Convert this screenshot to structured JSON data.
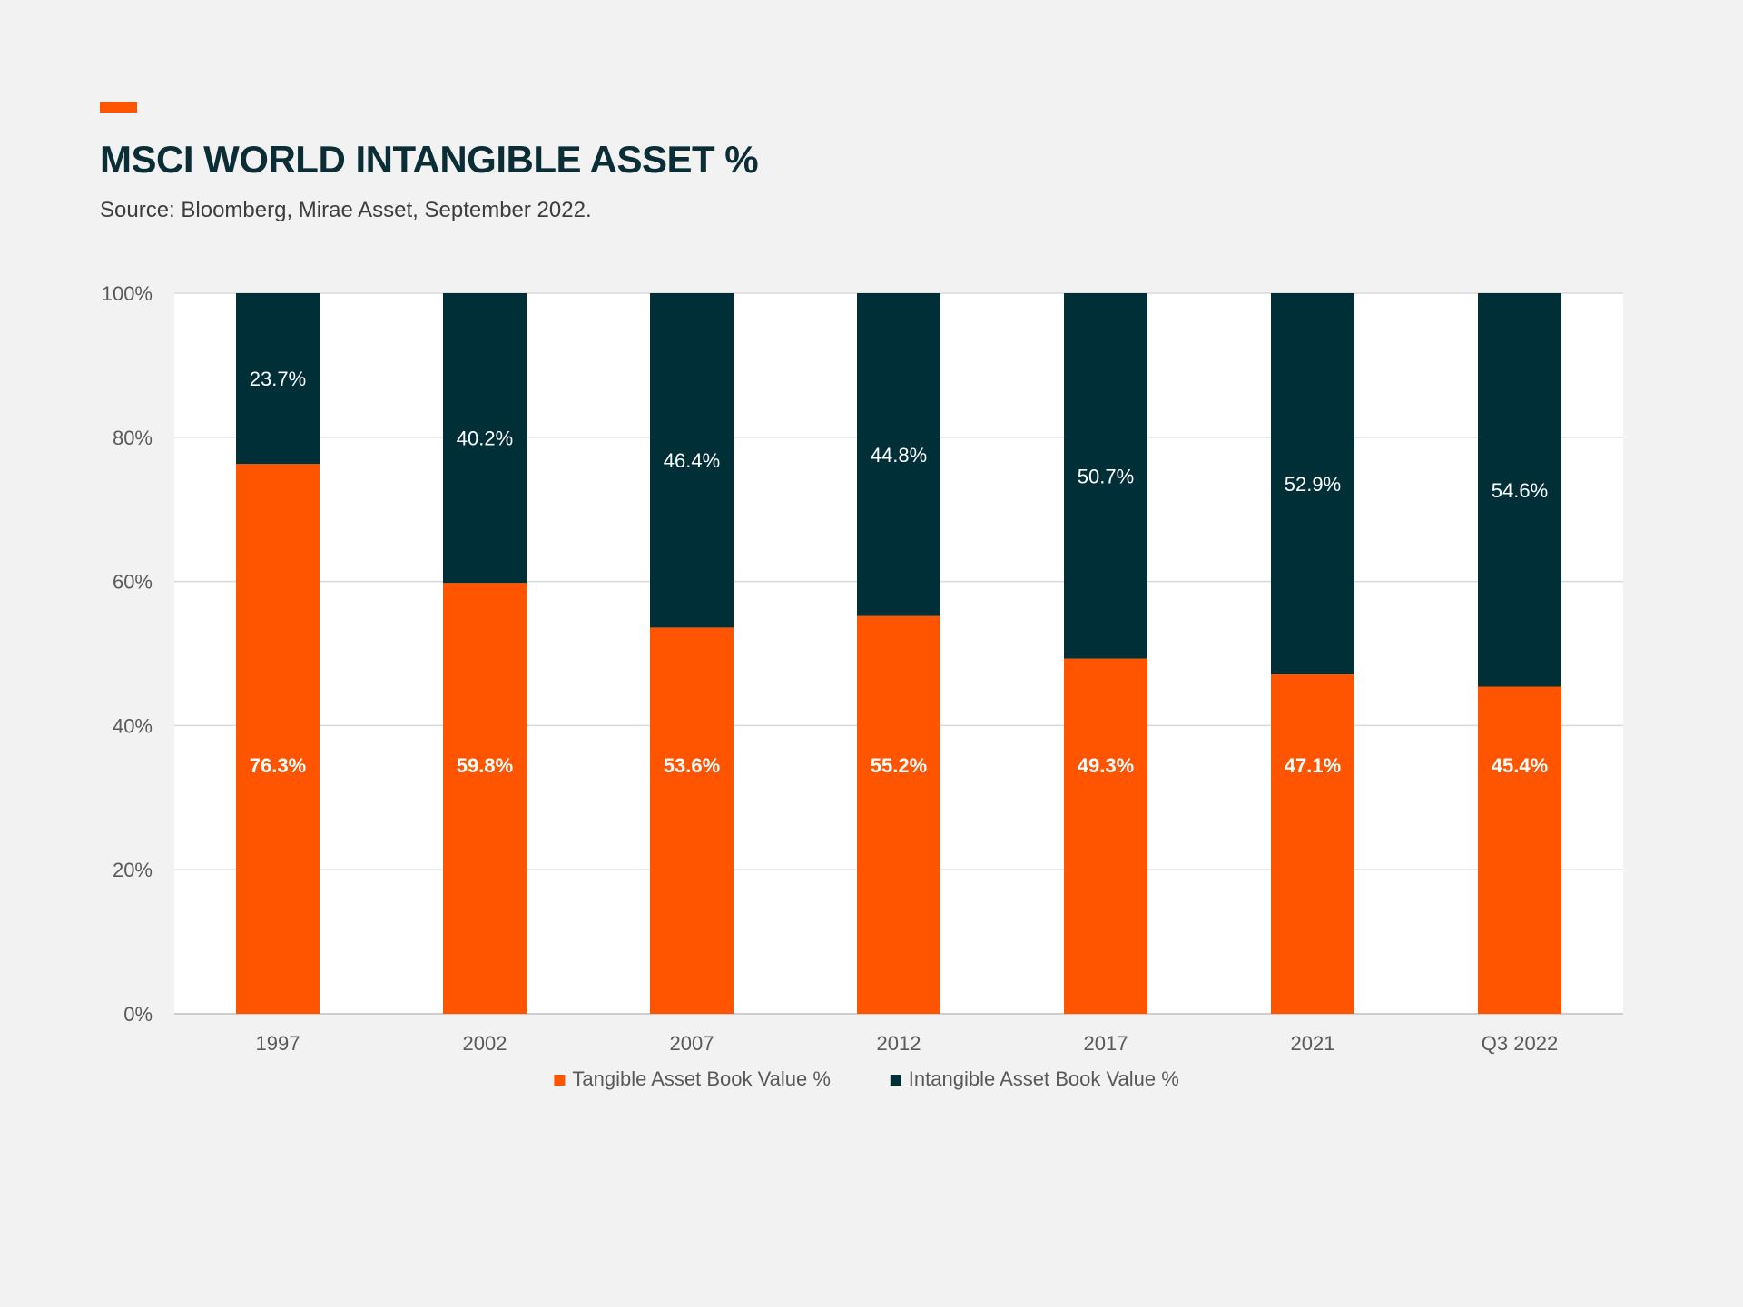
{
  "header": {
    "title": "MSCI WORLD INTANGIBLE ASSET %",
    "source": "Source: Bloomberg, Mirae Asset, September 2022."
  },
  "colors": {
    "accent": "#ff5500",
    "tangible": "#ff5500",
    "intangible": "#002f38",
    "title": "#0b2d36",
    "plot_background": "#ffffff",
    "page_background": "#f2f2f2",
    "gridline": "#d9d9d9"
  },
  "chart_data": {
    "type": "bar",
    "stacked": true,
    "title": "MSCI WORLD INTANGIBLE ASSET %",
    "subtitle": "Source: Bloomberg, Mirae Asset, September 2022.",
    "xlabel": "",
    "ylabel": "",
    "categories": [
      "1997",
      "2002",
      "2007",
      "2012",
      "2017",
      "2021",
      "Q3 2022"
    ],
    "series": [
      {
        "name": "Tangible Asset Book Value %",
        "values": [
          76.3,
          59.8,
          53.6,
          55.2,
          49.3,
          47.1,
          45.4
        ],
        "labels": [
          "76.3%",
          "59.8%",
          "53.6%",
          "55.2%",
          "49.3%",
          "47.1%",
          "45.4%"
        ]
      },
      {
        "name": "Intangible Asset Book Value %",
        "values": [
          23.7,
          40.2,
          46.4,
          44.8,
          50.7,
          52.9,
          54.6
        ],
        "labels": [
          "23.7%",
          "40.2%",
          "46.4%",
          "44.8%",
          "50.7%",
          "52.9%",
          "54.6%"
        ]
      }
    ],
    "ylim": [
      0,
      100
    ],
    "yticks": [
      0,
      20,
      40,
      60,
      80,
      100
    ],
    "ytick_labels": [
      "0%",
      "20%",
      "40%",
      "60%",
      "80%",
      "100%"
    ],
    "grid": true,
    "legend": "bottom"
  }
}
